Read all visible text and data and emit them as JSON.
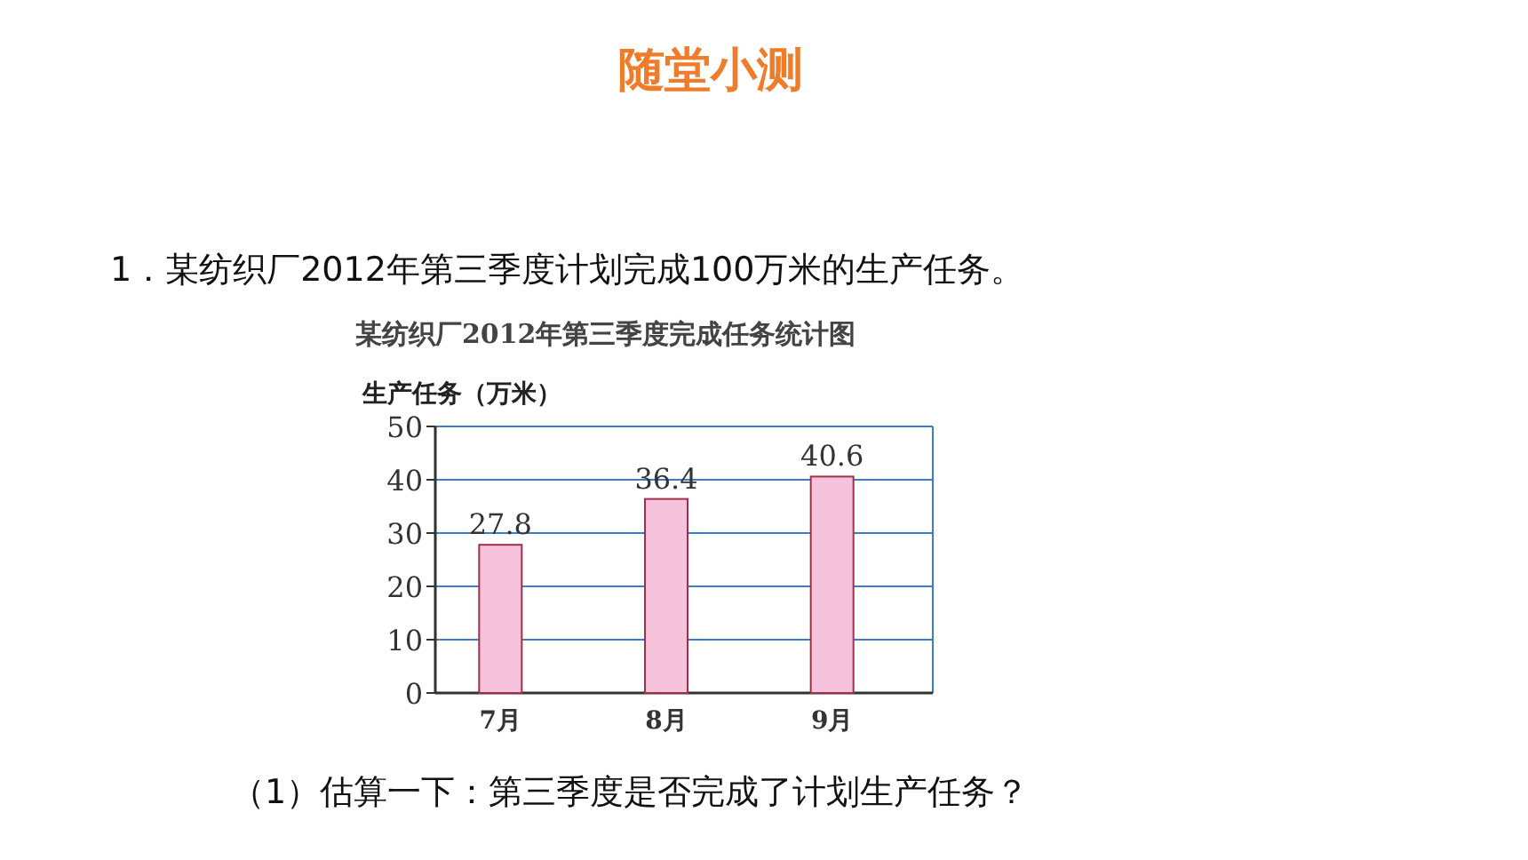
{
  "chart_data": {
    "type": "bar",
    "title": "某纺织厂2012年第三季度完成任务统计图",
    "ylabel": "生产任务（万米）",
    "annotations": [
      "随堂小测",
      "1．某纺织厂2012年第三季度计划完成100万米的生产任务。",
      "（1）估算一下：第三季度是否完成了计划生产任务？"
    ],
    "categories": [
      "7月",
      "8月",
      "9月"
    ],
    "values": [
      27.8,
      36.4,
      40.6
    ],
    "color": "#f7c3dc",
    "ylim": [
      0,
      50
    ],
    "yticks": [
      0,
      10,
      20,
      30,
      40,
      50
    ],
    "grid": "y",
    "data_labels": true
  }
}
